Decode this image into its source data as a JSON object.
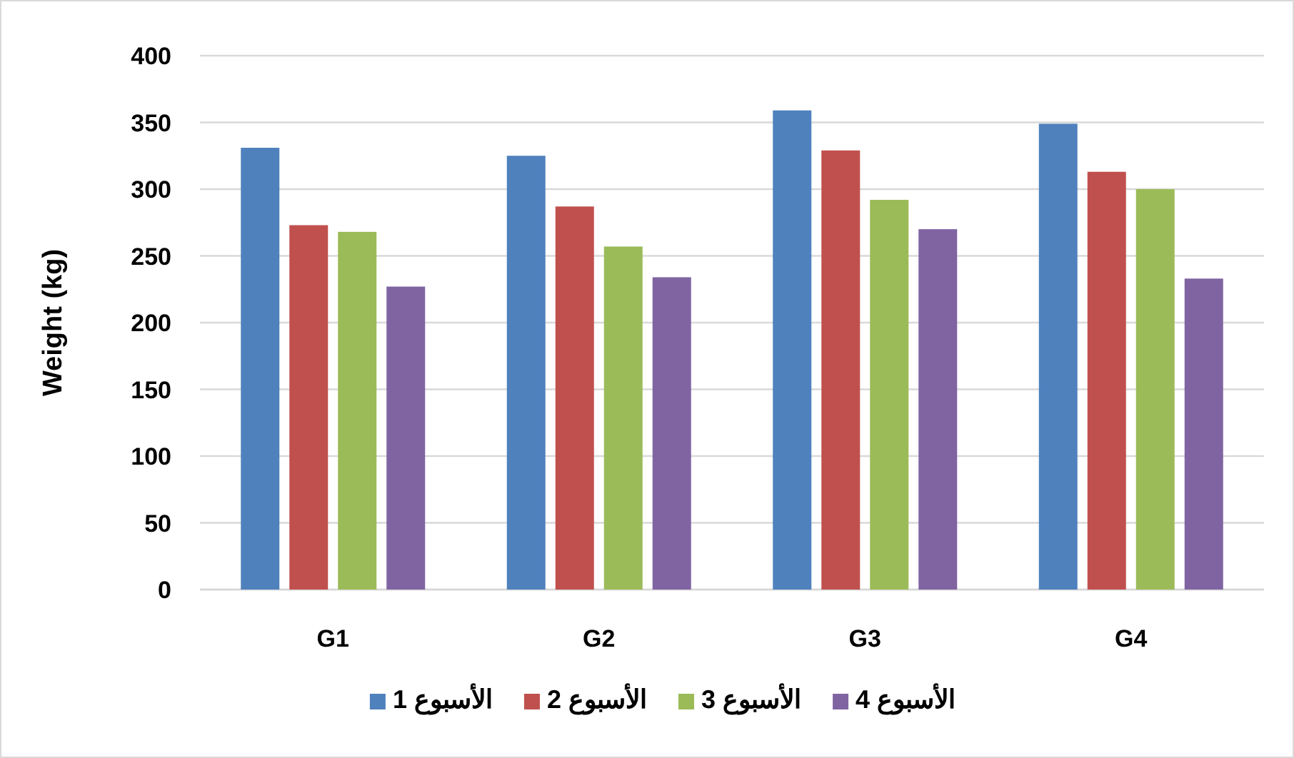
{
  "chart_data": {
    "type": "bar",
    "ylabel": "Weight (kg)",
    "categories": [
      "G1",
      "G2",
      "G3",
      "G4"
    ],
    "series": [
      {
        "name": "الأسبوع 1",
        "color": "#4f81bd",
        "values": [
          331,
          325,
          359,
          349
        ]
      },
      {
        "name": "الأسبوع 2",
        "color": "#c0504d",
        "values": [
          273,
          287,
          329,
          313
        ]
      },
      {
        "name": "الأسبوع 3",
        "color": "#9bbb59",
        "values": [
          268,
          257,
          292,
          300
        ]
      },
      {
        "name": "الأسبوع 4",
        "color": "#8064a2",
        "values": [
          227,
          234,
          270,
          233
        ]
      }
    ],
    "ylim": [
      0,
      400
    ],
    "yticks": [
      0,
      50,
      100,
      150,
      200,
      250,
      300,
      350,
      400
    ],
    "grid": "y",
    "legend": "bottom"
  }
}
